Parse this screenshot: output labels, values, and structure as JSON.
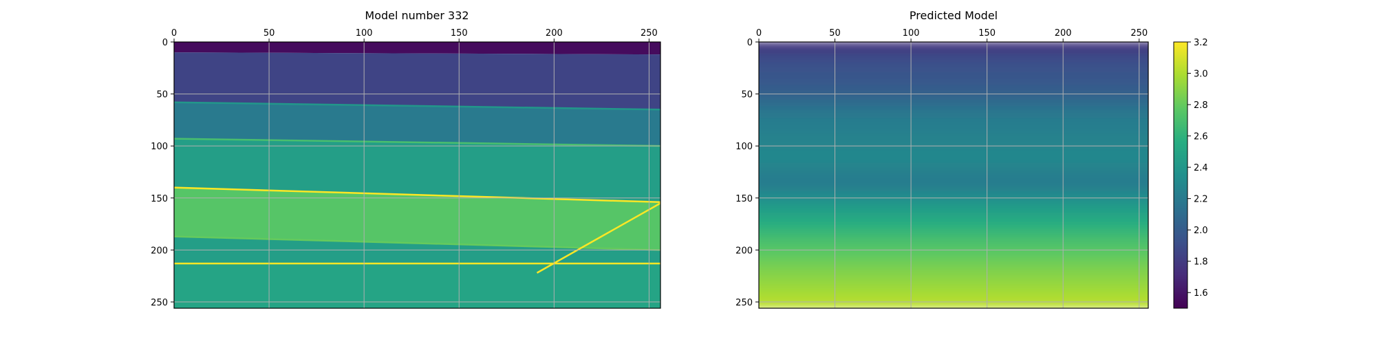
{
  "chart_data": [
    {
      "type": "heatmap",
      "title": "Model number 332",
      "xlabel": "",
      "ylabel": "",
      "xlim": [
        0,
        256
      ],
      "ylim": [
        256,
        0
      ],
      "x_ticks": [
        "0",
        "50",
        "100",
        "150",
        "200",
        "250"
      ],
      "y_ticks": [
        "0",
        "50",
        "100",
        "150",
        "200",
        "250"
      ],
      "grid": true,
      "x_axis_position": "top",
      "colormap": "viridis",
      "value_range": [
        1.5,
        3.2
      ],
      "layers": [
        {
          "depth_left": 0,
          "depth_right": 0,
          "value": 1.55
        },
        {
          "depth_left": 10,
          "depth_right": 12,
          "value": 1.85
        },
        {
          "depth_left": 58,
          "depth_right": 65,
          "value": 2.2
        },
        {
          "depth_left": 93,
          "depth_right": 100,
          "value": 2.45
        },
        {
          "depth_left": 140,
          "depth_right": 154,
          "value": 2.75
        },
        {
          "depth_left": 187,
          "depth_right": 200,
          "value": 2.45
        },
        {
          "depth_left": 213,
          "depth_right": 213,
          "value": 2.5
        }
      ],
      "bright_lines": [
        {
          "x": [
            0,
            256
          ],
          "y": [
            58,
            65
          ],
          "value": 2.4
        },
        {
          "x": [
            0,
            256
          ],
          "y": [
            93,
            100
          ],
          "value": 2.7
        },
        {
          "x": [
            0,
            256
          ],
          "y": [
            140,
            154
          ],
          "value": 3.2
        },
        {
          "x": [
            0,
            256
          ],
          "y": [
            187,
            200
          ],
          "value": 2.8
        },
        {
          "x": [
            0,
            256
          ],
          "y": [
            213,
            213
          ],
          "value": 3.2
        },
        {
          "x": [
            191,
            256
          ],
          "y": [
            222,
            155
          ],
          "value": 3.2
        }
      ]
    },
    {
      "type": "heatmap",
      "title": "Predicted Model",
      "xlabel": "",
      "ylabel": "",
      "xlim": [
        0,
        256
      ],
      "ylim": [
        256,
        0
      ],
      "x_ticks": [
        "0",
        "50",
        "100",
        "150",
        "200",
        "250"
      ],
      "y_ticks": [
        "0",
        "50",
        "100",
        "150",
        "200",
        "250"
      ],
      "grid": true,
      "x_axis_position": "top",
      "colormap": "viridis",
      "value_range": [
        1.5,
        3.2
      ],
      "profile": [
        {
          "depth": 0,
          "value": 1.75
        },
        {
          "depth": 15,
          "value": 1.9
        },
        {
          "depth": 45,
          "value": 2.0
        },
        {
          "depth": 70,
          "value": 2.2
        },
        {
          "depth": 110,
          "value": 2.3
        },
        {
          "depth": 135,
          "value": 2.2
        },
        {
          "depth": 160,
          "value": 2.45
        },
        {
          "depth": 190,
          "value": 2.7
        },
        {
          "depth": 215,
          "value": 2.85
        },
        {
          "depth": 256,
          "value": 3.05
        }
      ]
    }
  ],
  "colorbar": {
    "ticks": [
      "1.6",
      "1.8",
      "2.0",
      "2.2",
      "2.4",
      "2.6",
      "2.8",
      "3.0",
      "3.2"
    ],
    "values": [
      1.6,
      1.8,
      2.0,
      2.2,
      2.4,
      2.6,
      2.8,
      3.0,
      3.2
    ],
    "range": [
      1.5,
      3.2
    ],
    "colormap": "viridis"
  }
}
